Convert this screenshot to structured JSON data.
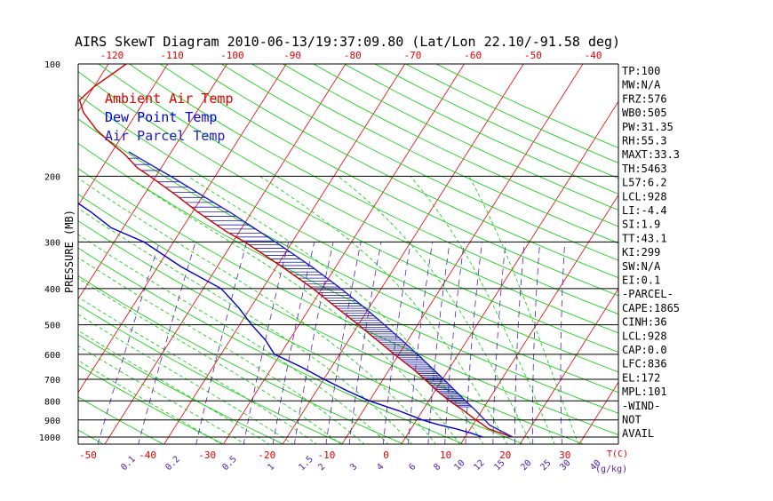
{
  "chart_data": {
    "type": "skewt",
    "title": "AIRS SkewT Diagram 2010-06-13/19:37:09.80 (Lat/Lon 22.10/-91.58 deg)",
    "ylabel": "PRESSURE (MB)",
    "xlabel_bottom": "T(C)",
    "mixing_ratio_unit": "(g/kg)",
    "ylim": [
      1000,
      100
    ],
    "pressure_ticks": [
      {
        "p": 100,
        "label": "100"
      },
      {
        "p": 200,
        "label": "200"
      },
      {
        "p": 300,
        "label": "300"
      },
      {
        "p": 400,
        "label": "400"
      },
      {
        "p": 500,
        "label": "500"
      },
      {
        "p": 600,
        "label": "600"
      },
      {
        "p": 700,
        "label": "700"
      },
      {
        "p": 800,
        "label": "800"
      },
      {
        "p": 900,
        "label": "900"
      },
      {
        "p": 1000,
        "label": "1000"
      }
    ],
    "top_temp_ticks": [
      "-120",
      "-110",
      "-100",
      "-90",
      "-80",
      "-70",
      "-60",
      "-50",
      "-40"
    ],
    "bottom_temp_ticks": [
      "-50",
      "-40",
      "-30",
      "-20",
      "-10",
      "0",
      "10",
      "20",
      "30"
    ],
    "mixing_ratio_labels": [
      "0.1",
      "0.2",
      "0.5",
      "1",
      "1.5",
      "2",
      "3",
      "4",
      "6",
      "8",
      "10",
      "12",
      "15",
      "20",
      "25",
      "30",
      "40"
    ],
    "legend": [
      {
        "name": "Ambient Air Temp",
        "color": "#e00000"
      },
      {
        "name": "Dew Point Temp",
        "color": "#0000e0"
      },
      {
        "name": "Air Parcel Temp",
        "color": "#2020c0"
      }
    ],
    "series": [
      {
        "name": "Ambient Air Temp",
        "color": "#cc0000",
        "points": [
          {
            "p": 1000,
            "t": 28
          },
          {
            "p": 975,
            "t": 25.5
          },
          {
            "p": 950,
            "t": 23
          },
          {
            "p": 925,
            "t": 21.6
          },
          {
            "p": 900,
            "t": 20
          },
          {
            "p": 850,
            "t": 17
          },
          {
            "p": 800,
            "t": 13.5
          },
          {
            "p": 750,
            "t": 10.2
          },
          {
            "p": 700,
            "t": 7
          },
          {
            "p": 650,
            "t": 3.4
          },
          {
            "p": 600,
            "t": -0.8
          },
          {
            "p": 550,
            "t": -5.2
          },
          {
            "p": 500,
            "t": -10
          },
          {
            "p": 450,
            "t": -15.5
          },
          {
            "p": 400,
            "t": -21.5
          },
          {
            "p": 350,
            "t": -29
          },
          {
            "p": 300,
            "t": -38
          },
          {
            "p": 280,
            "t": -42.5
          },
          {
            "p": 250,
            "t": -49
          },
          {
            "p": 225,
            "t": -54.5
          },
          {
            "p": 200,
            "t": -61
          },
          {
            "p": 190,
            "t": -64
          },
          {
            "p": 175,
            "t": -67.5
          },
          {
            "p": 160,
            "t": -72
          },
          {
            "p": 150,
            "t": -75
          },
          {
            "p": 135,
            "t": -79
          },
          {
            "p": 125,
            "t": -81
          },
          {
            "p": 115,
            "t": -80
          },
          {
            "p": 105,
            "t": -78
          },
          {
            "p": 100,
            "t": -77
          }
        ]
      },
      {
        "name": "Dew Point Temp",
        "color": "#0000cc",
        "points": [
          {
            "p": 1000,
            "t": 23
          },
          {
            "p": 975,
            "t": 20.5
          },
          {
            "p": 950,
            "t": 17.5
          },
          {
            "p": 925,
            "t": 14
          },
          {
            "p": 900,
            "t": 11
          },
          {
            "p": 850,
            "t": 6
          },
          {
            "p": 800,
            "t": 0
          },
          {
            "p": 750,
            "t": -5
          },
          {
            "p": 700,
            "t": -10
          },
          {
            "p": 650,
            "t": -15
          },
          {
            "p": 600,
            "t": -21
          },
          {
            "p": 550,
            "t": -24
          },
          {
            "p": 500,
            "t": -28
          },
          {
            "p": 450,
            "t": -32
          },
          {
            "p": 400,
            "t": -37
          },
          {
            "p": 350,
            "t": -46
          },
          {
            "p": 300,
            "t": -55
          },
          {
            "p": 275,
            "t": -62
          },
          {
            "p": 250,
            "t": -67
          },
          {
            "p": 225,
            "t": -73
          },
          {
            "p": 200,
            "t": -79
          },
          {
            "p": 175,
            "t": -86
          },
          {
            "p": 160,
            "t": -90
          },
          {
            "p": 150,
            "t": -92
          },
          {
            "p": 125,
            "t": -97
          },
          {
            "p": 110,
            "t": -99
          },
          {
            "p": 100,
            "t": -100
          }
        ]
      },
      {
        "name": "Air Parcel Temp",
        "color": "#2020c0",
        "points": [
          {
            "p": 1000,
            "t": 28
          },
          {
            "p": 928,
            "t": 22.8
          },
          {
            "p": 900,
            "t": 21.5
          },
          {
            "p": 850,
            "t": 19
          },
          {
            "p": 800,
            "t": 16.2
          },
          {
            "p": 750,
            "t": 13.3
          },
          {
            "p": 700,
            "t": 10.2
          },
          {
            "p": 650,
            "t": 6.8
          },
          {
            "p": 600,
            "t": 3.1
          },
          {
            "p": 550,
            "t": -1
          },
          {
            "p": 500,
            "t": -5.6
          },
          {
            "p": 450,
            "t": -10.8
          },
          {
            "p": 400,
            "t": -16.8
          },
          {
            "p": 350,
            "t": -24
          },
          {
            "p": 300,
            "t": -32.8
          },
          {
            "p": 250,
            "t": -43.6
          },
          {
            "p": 225,
            "t": -50.2
          },
          {
            "p": 200,
            "t": -57.5
          },
          {
            "p": 190,
            "t": -60.8
          },
          {
            "p": 180,
            "t": -64.3
          },
          {
            "p": 172,
            "t": -67.2
          }
        ]
      }
    ],
    "indices": [
      "TP:100",
      "MW:N/A",
      "FRZ:576",
      "WB0:505",
      "PW:31.35",
      "RH:55.3",
      "MAXT:33.3",
      "TH:5463",
      "L57:6.2",
      "LCL:928",
      "LI:-4.4",
      "SI:1.9",
      "TT:43.1",
      "KI:299",
      "SW:N/A",
      "EI:0.1",
      "-PARCEL-",
      "CAPE:1865",
      "CINH:36",
      "LCL:928",
      "CAP:0.0",
      "LFC:836",
      "EL:172",
      "MPL:101",
      "-WIND-",
      "NOT",
      "AVAIL"
    ],
    "colors": {
      "isotherm": "#e00000",
      "dry_adiabat": "#00cc00",
      "moist_adiabat": "#00cc00",
      "mixing_ratio": "#5020b0",
      "axis_text": "#000000",
      "temp_tick_text": "#e00000",
      "mixing_text": "#5020b0"
    }
  }
}
